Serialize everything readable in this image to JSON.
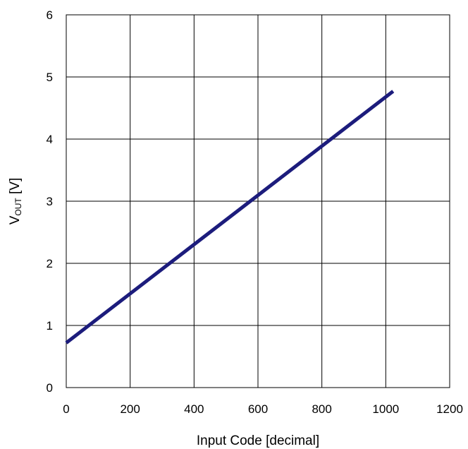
{
  "chart_data": {
    "type": "line",
    "title": "",
    "xlabel": "Input Code [decimal]",
    "ylabel": {
      "main": "V",
      "sub": "OUT",
      "unit": " [V]"
    },
    "xlim": [
      0,
      1200
    ],
    "ylim": [
      0,
      6
    ],
    "x_ticks": [
      "0",
      "200",
      "400",
      "600",
      "800",
      "1000",
      "1200"
    ],
    "y_ticks": [
      "0",
      "1",
      "2",
      "3",
      "4",
      "5",
      "6"
    ],
    "grid": true,
    "series": [
      {
        "color": "#1c1c7c",
        "x": [
          0,
          1023
        ],
        "y": [
          0.72,
          4.77
        ]
      }
    ]
  }
}
